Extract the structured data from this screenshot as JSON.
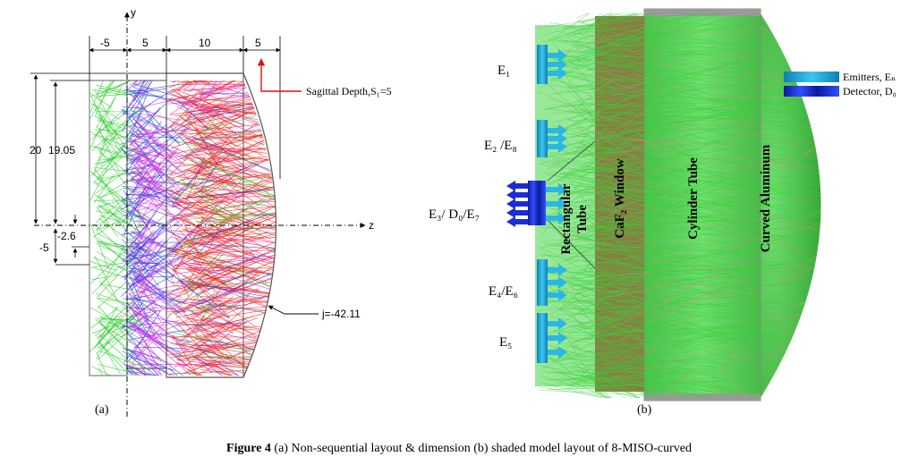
{
  "panel_a": {
    "sub_label": "(a)",
    "axis_y": "y",
    "axis_z": "z",
    "dims_top": [
      "-5",
      "5",
      "10",
      "5"
    ],
    "dim_20": "20",
    "dim_1905": "19.05",
    "dim_26": "-2.6",
    "dim_m5": "-5",
    "sagittal": "Sagittal Depth,S₁=5",
    "j_label": "j=-42.11"
  },
  "panel_b": {
    "sub_label": "(b)",
    "e1": "E₁",
    "e2e8": "E₂ /E₈",
    "e3": "E₃/ D₀/E₇",
    "e4e6": "E₄/E₆",
    "e5": "E₅",
    "rect_tube_1": "Rectangular",
    "rect_tube_2": "Tube",
    "caf2": "CaF₂ Window",
    "cyl": "Cylinder Tube",
    "curved": "Curved Aluminum",
    "legend_emitters": "Emitters, Eₙ",
    "legend_detector": "Detector, D₀"
  },
  "caption": {
    "label": "Figure 4",
    "text": "  (a) Non-sequential layout & dimension (b) shaded model layout of 8-MISO-curved"
  },
  "colors": {
    "ray_green": "#22cc22",
    "ray_blue": "#2233ee",
    "ray_magenta": "#dd22dd",
    "ray_red": "#ee2222",
    "emitter_cyan": "#1aa9d6",
    "detector_blue": "#1b2bd6",
    "caf2_fill": "#8c7a42",
    "cyl_fill": "#5fcf5f",
    "dome_fill": "#3fbf3f",
    "callout_red": "#dd1111"
  }
}
